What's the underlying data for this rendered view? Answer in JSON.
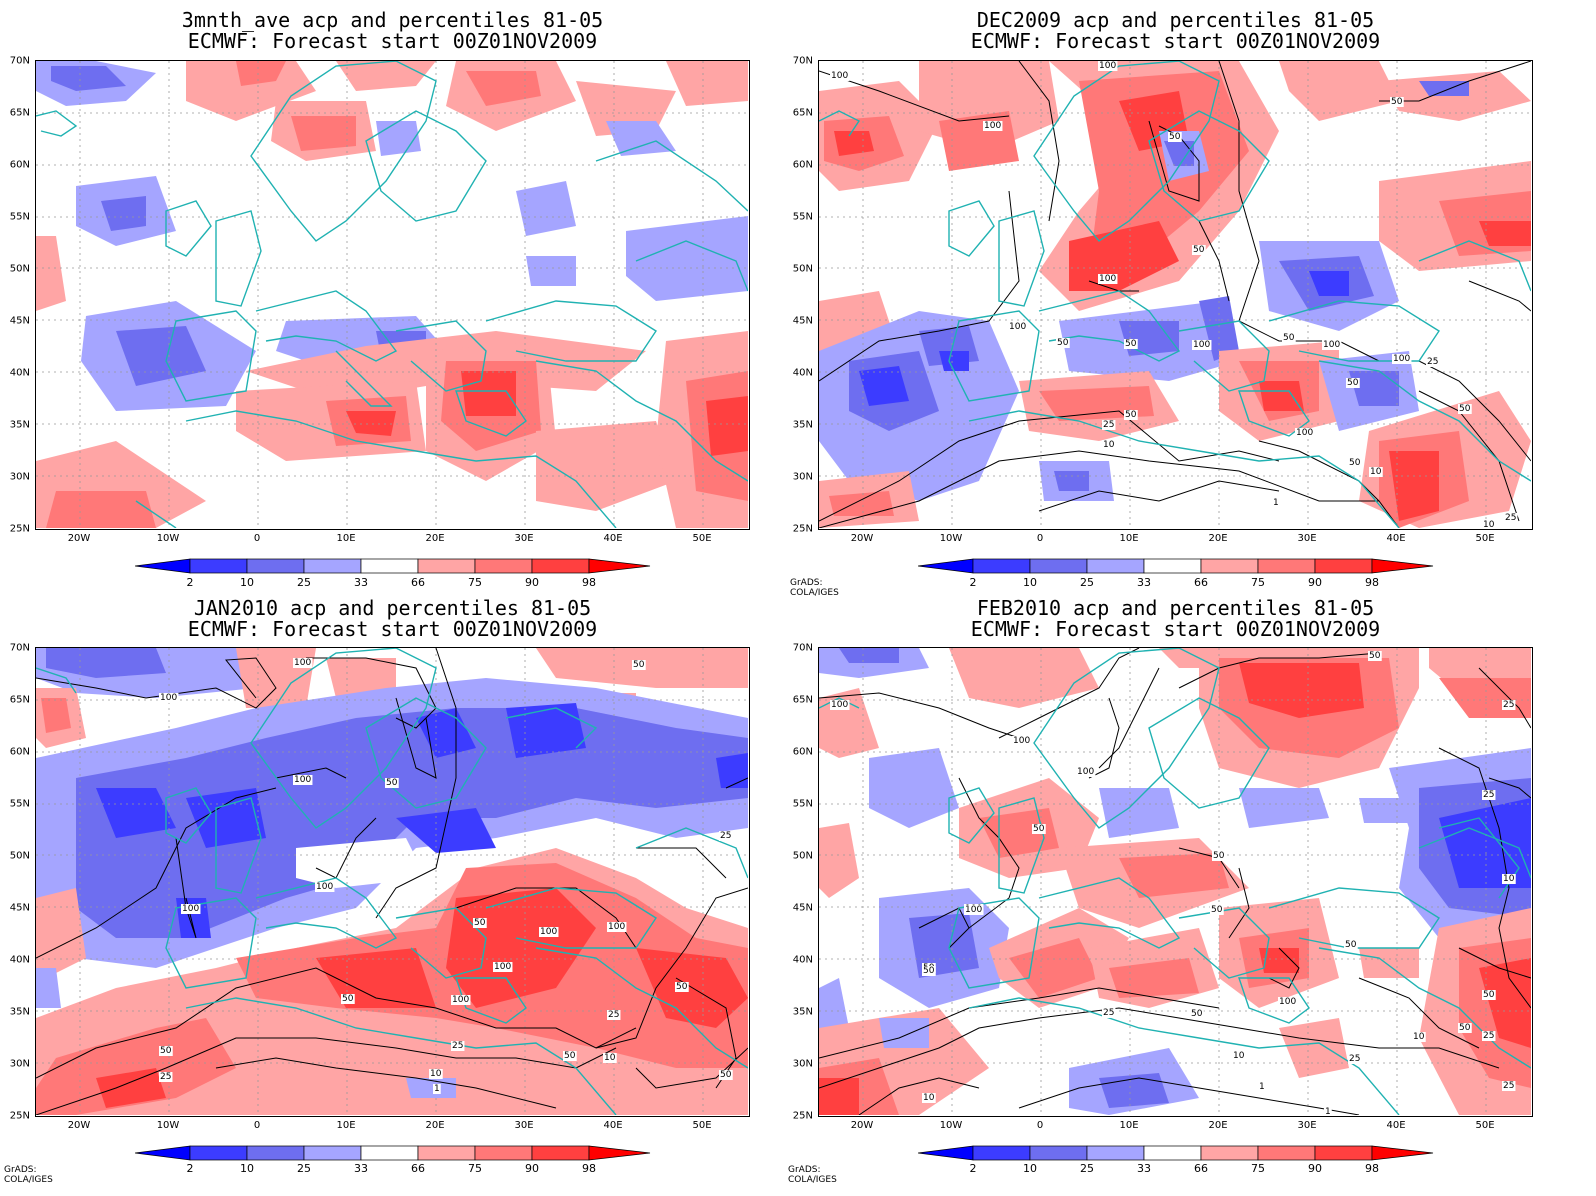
{
  "panels": [
    {
      "title1": "3mnth_ave acp and percentiles 81-05",
      "title2": "ECMWF: Forecast start 00Z01NOV2009",
      "credit": ""
    },
    {
      "title1": "DEC2009 acp and percentiles 81-05",
      "title2": "ECMWF: Forecast start 00Z01NOV2009",
      "credit": "GrADS: COLA/IGES"
    },
    {
      "title1": "JAN2010 acp and percentiles 81-05",
      "title2": "ECMWF: Forecast start 00Z01NOV2009",
      "credit": "GrADS: COLA/IGES"
    },
    {
      "title1": "FEB2010 acp and percentiles 81-05",
      "title2": "ECMWF: Forecast start 00Z01NOV2009",
      "credit": "GrADS: COLA/IGES"
    }
  ],
  "lat_labels": [
    "70N",
    "65N",
    "60N",
    "55N",
    "50N",
    "45N",
    "40N",
    "35N",
    "30N",
    "25N"
  ],
  "lon_labels": [
    "20W",
    "10W",
    "0",
    "10E",
    "20E",
    "30E",
    "40E",
    "50E"
  ],
  "colorbar": {
    "labels": [
      "2",
      "10",
      "25",
      "33",
      "66",
      "75",
      "90",
      "98"
    ],
    "colors": [
      "#0000ff",
      "#3c3cff",
      "#6e6ef0",
      "#a5a5ff",
      "#ffffff",
      "#ffa5a5",
      "#ff7878",
      "#ff4040",
      "#ff0000"
    ]
  },
  "contour_labels": {
    "dec": [
      "100",
      "100",
      "50",
      "50",
      "100",
      "50",
      "100",
      "100",
      "50",
      "50",
      "100",
      "50",
      "25",
      "100",
      "50",
      "100",
      "10",
      "50",
      "25",
      "10",
      "50",
      "1",
      "10",
      "25",
      "50",
      "100"
    ],
    "jan": [
      "100",
      "50",
      "100",
      "100",
      "50",
      "25",
      "100",
      "100",
      "50",
      "100",
      "100",
      "100",
      "50",
      "100",
      "50",
      "25",
      "50",
      "50",
      "25",
      "10",
      "1",
      "10",
      "50",
      "25"
    ],
    "feb": [
      "50",
      "100",
      "25",
      "100",
      "100",
      "50",
      "50",
      "50",
      "100",
      "25",
      "50",
      "50",
      "100",
      "25",
      "50",
      "10",
      "10",
      "25",
      "10",
      "1",
      "1",
      "10",
      "50",
      "25",
      "50",
      "100",
      "50",
      "25"
    ]
  }
}
